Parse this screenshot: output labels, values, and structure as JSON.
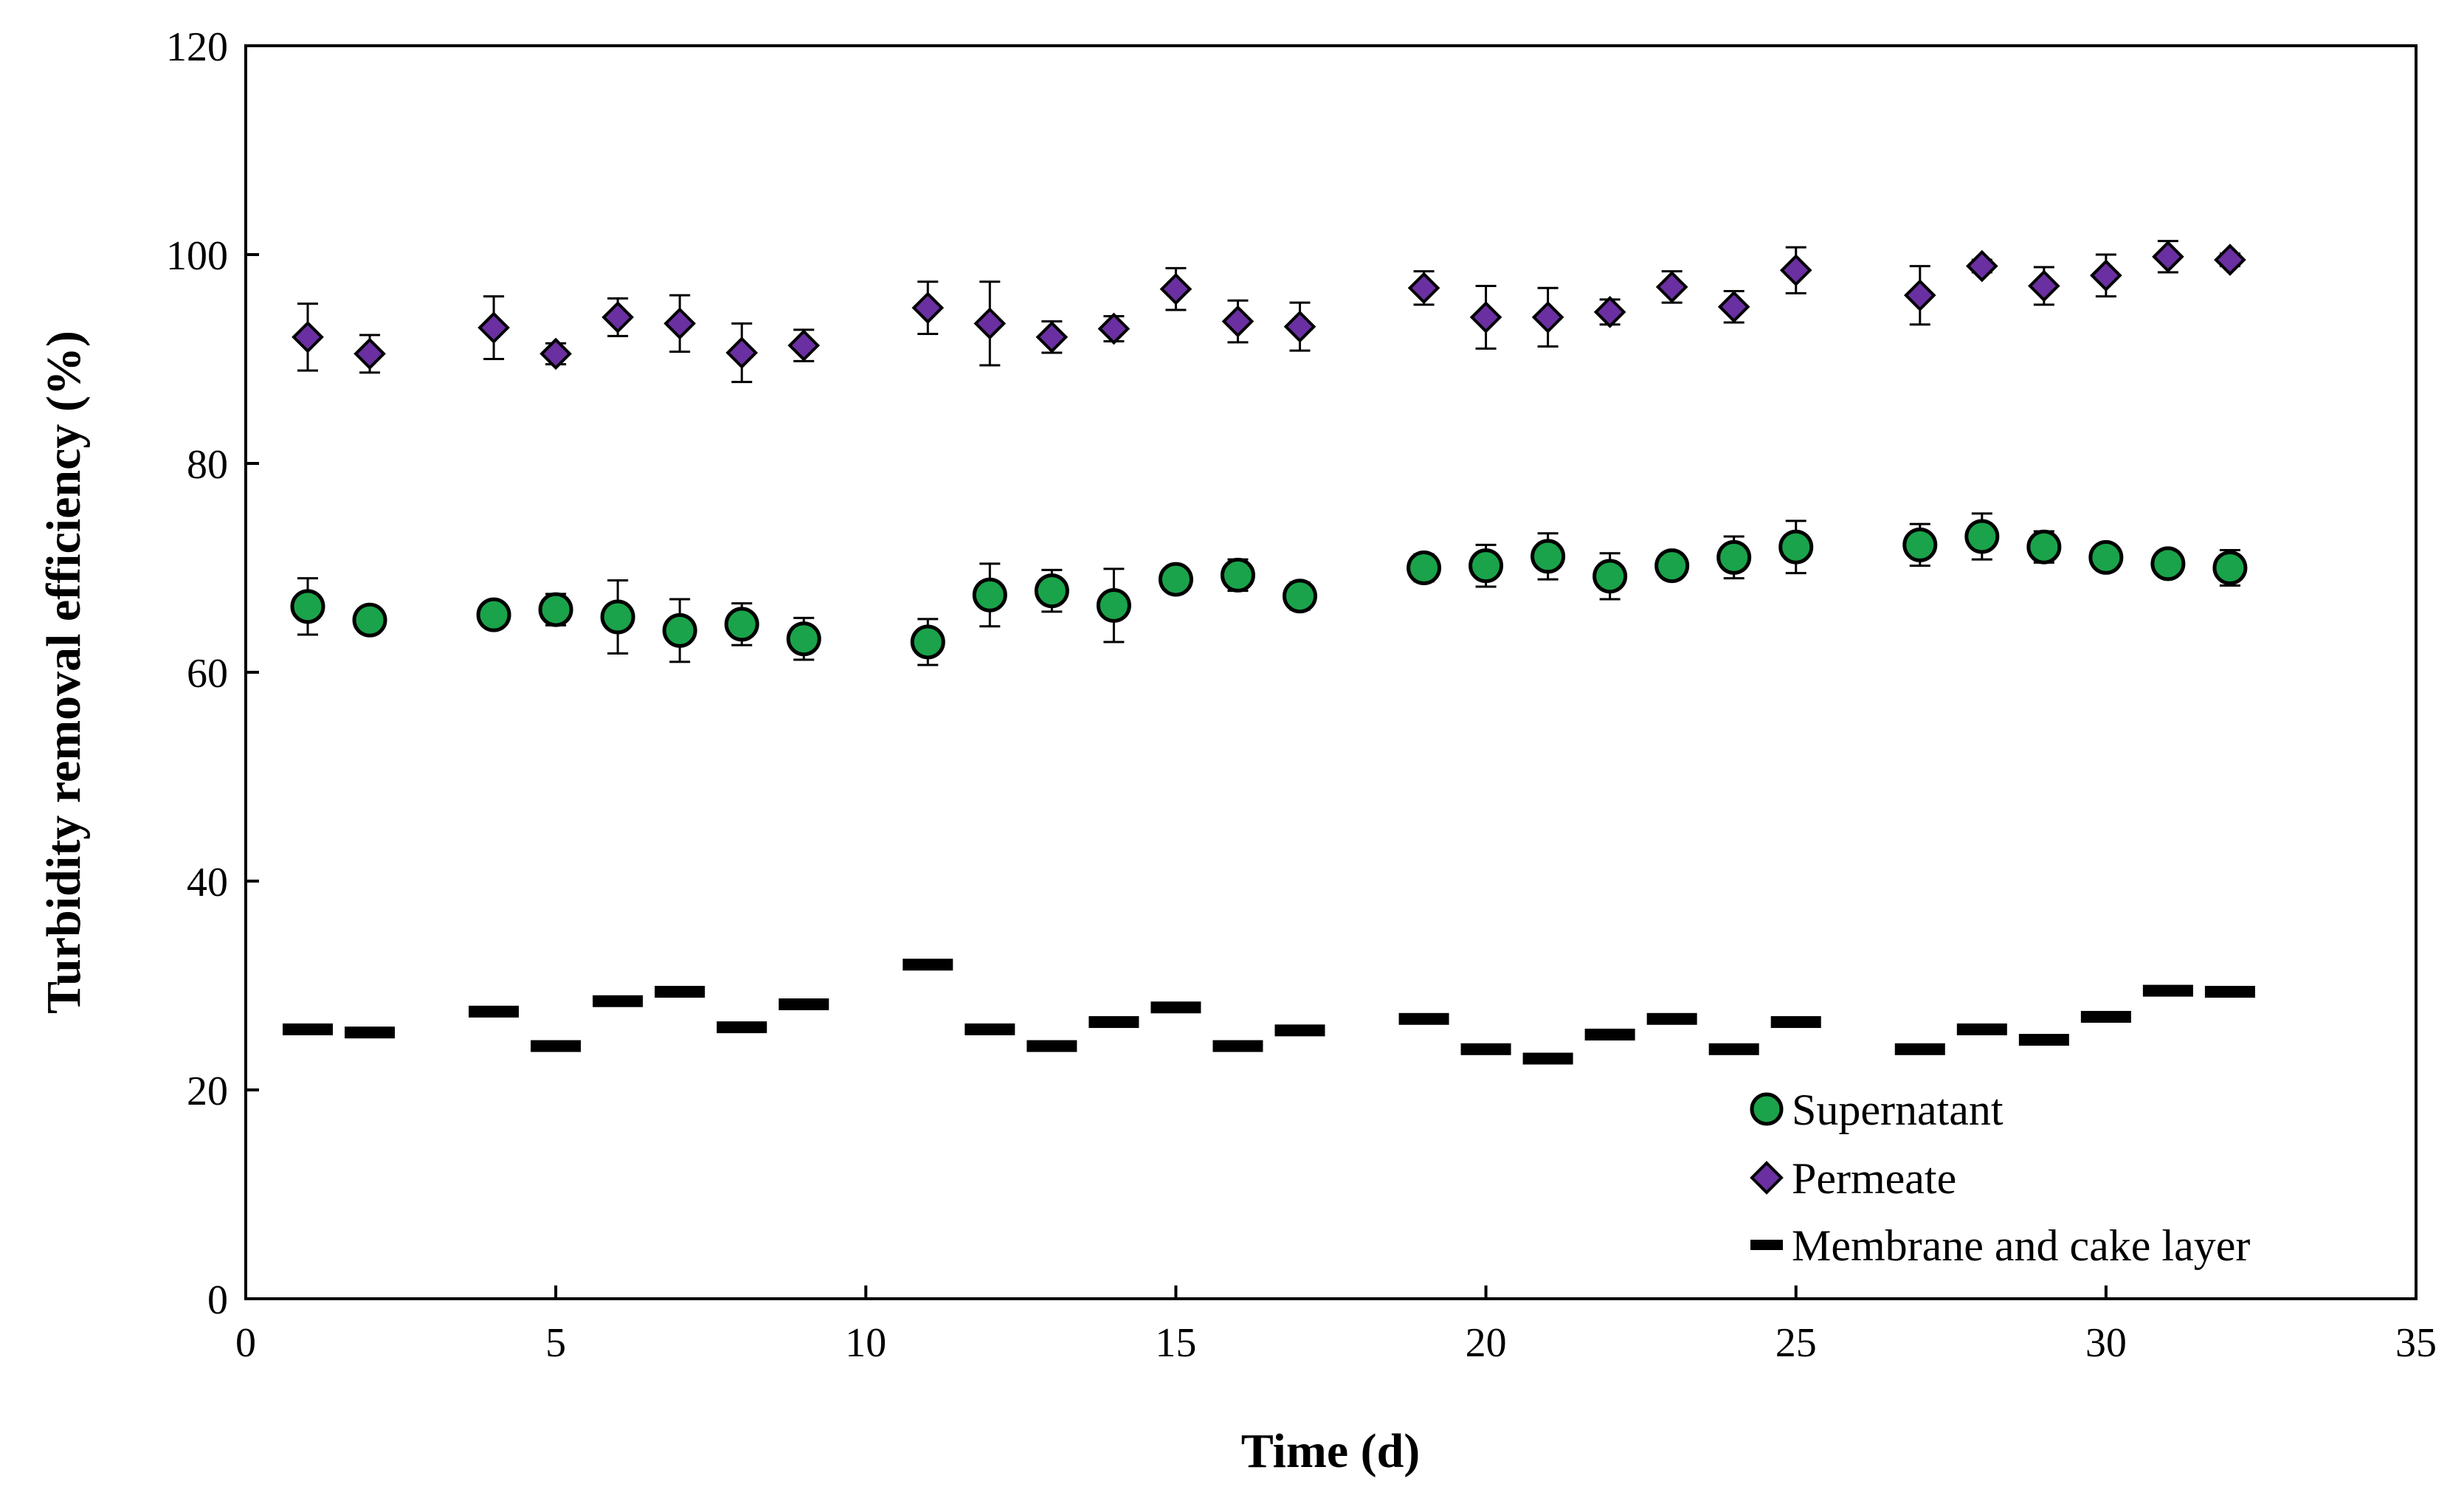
{
  "chart_data": {
    "type": "scatter",
    "title": "",
    "xlabel": "Time (d)",
    "ylabel": "Turbidity removal efficiency (%)",
    "xlim": [
      0,
      35
    ],
    "ylim": [
      0,
      120
    ],
    "xticks": [
      0,
      5,
      10,
      15,
      20,
      25,
      30,
      35
    ],
    "yticks": [
      0,
      20,
      40,
      60,
      80,
      100,
      120
    ],
    "grid": false,
    "legend_position": "bottom-right",
    "colors": {
      "supernatant_fill": "#1aa34a",
      "permeate_fill": "#6a2fa0",
      "marker_edge": "#000000",
      "membrane_fill": "#000000"
    },
    "series": [
      {
        "name": "Supernatant",
        "marker": "circle",
        "x": [
          1,
          2,
          4,
          5,
          6,
          7,
          8,
          9,
          11,
          12,
          13,
          14,
          15,
          16,
          17,
          19,
          20,
          21,
          22,
          23,
          24,
          25,
          27,
          28,
          29,
          30,
          31,
          32
        ],
        "y": [
          66.3,
          65.0,
          65.5,
          66.0,
          65.3,
          64.0,
          64.6,
          63.2,
          62.9,
          67.4,
          67.8,
          66.4,
          68.9,
          69.3,
          67.3,
          70.0,
          70.2,
          71.1,
          69.2,
          70.2,
          71.0,
          72.0,
          72.2,
          73.0,
          72.0,
          71.0,
          70.4,
          70.0
        ],
        "error": [
          2.7,
          1.0,
          0.7,
          1.5,
          3.5,
          3.0,
          2.0,
          2.0,
          2.2,
          3.0,
          2.0,
          3.5,
          0.8,
          1.5,
          1.3,
          1.3,
          2.0,
          2.2,
          2.2,
          0.8,
          2.0,
          2.5,
          2.0,
          2.2,
          1.5,
          1.2,
          0.7,
          1.7
        ]
      },
      {
        "name": "Permeate",
        "marker": "diamond",
        "x": [
          1,
          2,
          4,
          5,
          6,
          7,
          8,
          9,
          11,
          12,
          13,
          14,
          15,
          16,
          17,
          19,
          20,
          21,
          22,
          23,
          24,
          25,
          27,
          28,
          29,
          30,
          31,
          32
        ],
        "y": [
          92.1,
          90.5,
          93.0,
          90.5,
          94.0,
          93.4,
          90.6,
          91.3,
          94.9,
          93.4,
          92.1,
          92.9,
          96.7,
          93.6,
          93.1,
          96.8,
          94.0,
          94.0,
          94.5,
          96.9,
          95.0,
          98.5,
          96.1,
          98.9,
          97.0,
          98.0,
          99.8,
          99.5
        ],
        "error": [
          3.2,
          1.8,
          3.0,
          1.0,
          1.8,
          2.7,
          2.8,
          1.5,
          2.5,
          4.0,
          1.5,
          1.2,
          2.0,
          2.0,
          2.3,
          1.6,
          3.0,
          2.8,
          1.2,
          1.5,
          1.5,
          2.2,
          2.8,
          0.6,
          1.8,
          2.0,
          1.5,
          0.6
        ]
      },
      {
        "name": "Membrane and cake layer",
        "marker": "dash",
        "x": [
          1,
          2,
          4,
          5,
          6,
          7,
          8,
          9,
          11,
          12,
          13,
          14,
          15,
          16,
          17,
          19,
          20,
          21,
          22,
          23,
          24,
          25,
          27,
          28,
          29,
          30,
          31,
          32
        ],
        "y": [
          25.8,
          25.5,
          27.5,
          24.2,
          28.5,
          29.4,
          26.0,
          28.2,
          32.0,
          25.8,
          24.2,
          26.5,
          27.9,
          24.2,
          25.7,
          26.8,
          23.9,
          23.0,
          25.3,
          26.8,
          23.9,
          26.5,
          23.9,
          25.8,
          24.8,
          27.0,
          29.5,
          29.4
        ]
      }
    ]
  }
}
